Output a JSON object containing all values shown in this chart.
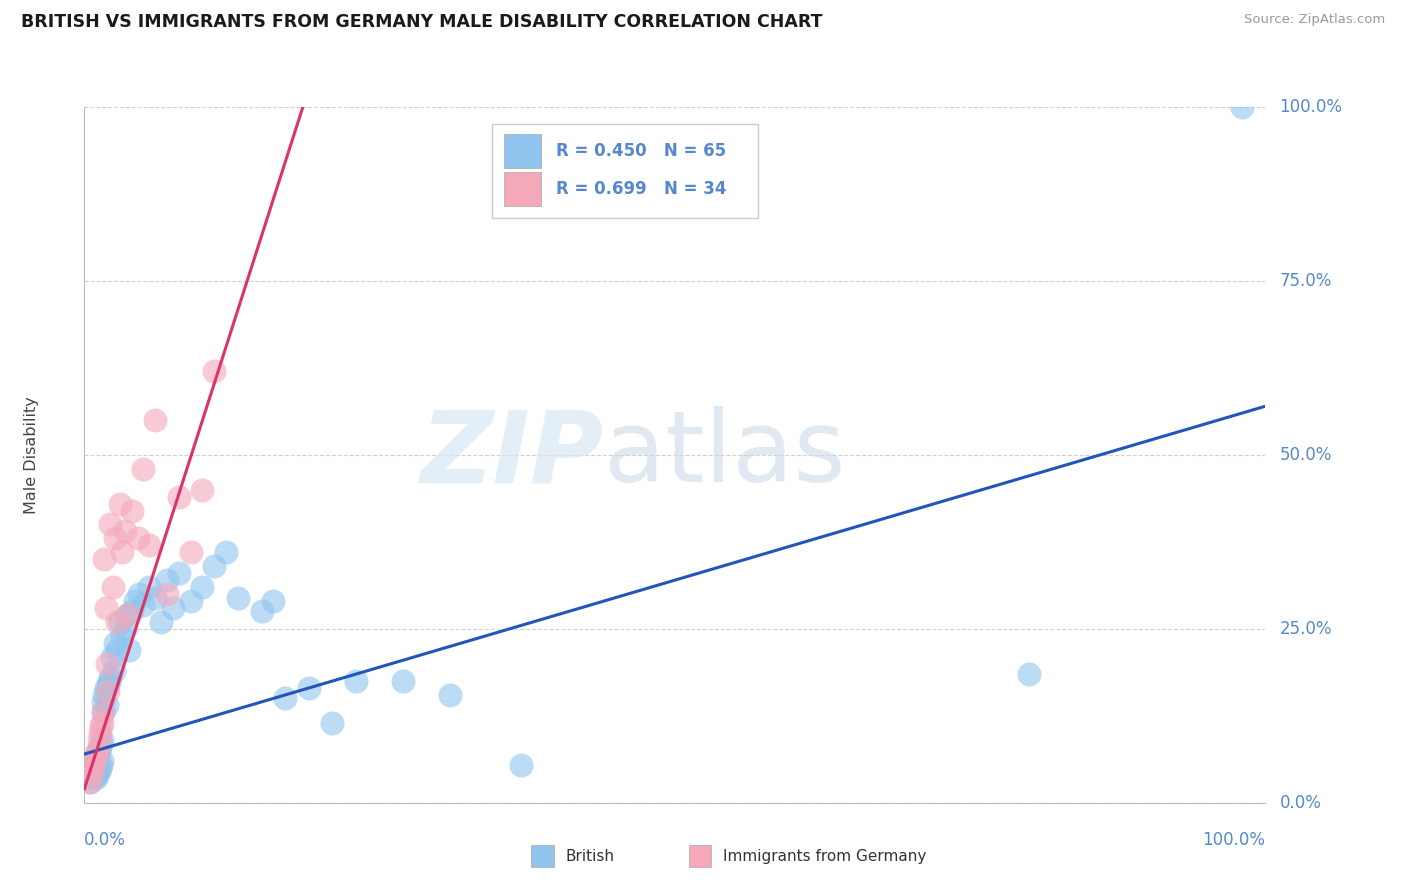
{
  "title": "BRITISH VS IMMIGRANTS FROM GERMANY MALE DISABILITY CORRELATION CHART",
  "source": "Source: ZipAtlas.com",
  "ylabel": "Male Disability",
  "ytick_labels": [
    "0.0%",
    "25.0%",
    "50.0%",
    "75.0%",
    "100.0%"
  ],
  "ytick_values": [
    0.0,
    0.25,
    0.5,
    0.75,
    1.0
  ],
  "xtick_left_label": "0.0%",
  "xtick_right_label": "100.0%",
  "xlim": [
    0.0,
    1.0
  ],
  "ylim": [
    0.0,
    1.0
  ],
  "british_R": 0.45,
  "british_N": 65,
  "germany_R": 0.699,
  "germany_N": 34,
  "british_marker_color": "#90C4EE",
  "germany_marker_color": "#F4A8BA",
  "british_line_color": "#2255BB",
  "germany_line_color": "#DD3366",
  "axis_label_color": "#5588CC",
  "background_color": "#FFFFFF",
  "grid_color": "#CCCCCC",
  "british_x": [
    0.005,
    0.006,
    0.007,
    0.007,
    0.008,
    0.008,
    0.009,
    0.009,
    0.01,
    0.01,
    0.01,
    0.01,
    0.011,
    0.011,
    0.012,
    0.012,
    0.013,
    0.013,
    0.014,
    0.014,
    0.015,
    0.015,
    0.016,
    0.016,
    0.017,
    0.018,
    0.019,
    0.02,
    0.021,
    0.022,
    0.023,
    0.025,
    0.026,
    0.028,
    0.03,
    0.032,
    0.034,
    0.036,
    0.038,
    0.04,
    0.043,
    0.046,
    0.05,
    0.055,
    0.06,
    0.065,
    0.07,
    0.075,
    0.08,
    0.09,
    0.1,
    0.11,
    0.12,
    0.13,
    0.15,
    0.16,
    0.17,
    0.19,
    0.21,
    0.23,
    0.27,
    0.31,
    0.37,
    0.8,
    0.98
  ],
  "british_y": [
    0.03,
    0.035,
    0.04,
    0.05,
    0.04,
    0.055,
    0.04,
    0.06,
    0.035,
    0.045,
    0.055,
    0.065,
    0.04,
    0.07,
    0.045,
    0.075,
    0.05,
    0.08,
    0.055,
    0.085,
    0.06,
    0.09,
    0.13,
    0.145,
    0.155,
    0.165,
    0.14,
    0.17,
    0.175,
    0.18,
    0.21,
    0.19,
    0.23,
    0.22,
    0.26,
    0.24,
    0.25,
    0.27,
    0.22,
    0.275,
    0.29,
    0.3,
    0.285,
    0.31,
    0.295,
    0.26,
    0.32,
    0.28,
    0.33,
    0.29,
    0.31,
    0.34,
    0.36,
    0.295,
    0.275,
    0.29,
    0.15,
    0.165,
    0.115,
    0.175,
    0.175,
    0.155,
    0.055,
    0.185,
    1.0
  ],
  "germany_x": [
    0.005,
    0.006,
    0.007,
    0.008,
    0.009,
    0.01,
    0.011,
    0.012,
    0.013,
    0.014,
    0.015,
    0.016,
    0.017,
    0.018,
    0.019,
    0.02,
    0.022,
    0.024,
    0.026,
    0.028,
    0.03,
    0.032,
    0.034,
    0.036,
    0.04,
    0.045,
    0.05,
    0.055,
    0.06,
    0.07,
    0.08,
    0.09,
    0.1,
    0.11
  ],
  "germany_y": [
    0.03,
    0.04,
    0.05,
    0.06,
    0.065,
    0.07,
    0.075,
    0.09,
    0.1,
    0.11,
    0.115,
    0.13,
    0.35,
    0.28,
    0.2,
    0.16,
    0.4,
    0.31,
    0.38,
    0.26,
    0.43,
    0.36,
    0.39,
    0.27,
    0.42,
    0.38,
    0.48,
    0.37,
    0.55,
    0.3,
    0.44,
    0.36,
    0.45,
    0.62
  ],
  "british_line_x": [
    0.0,
    1.0
  ],
  "british_line_y": [
    0.07,
    0.57
  ],
  "germany_line_x": [
    0.0,
    0.185
  ],
  "germany_line_y": [
    0.02,
    1.0
  ]
}
